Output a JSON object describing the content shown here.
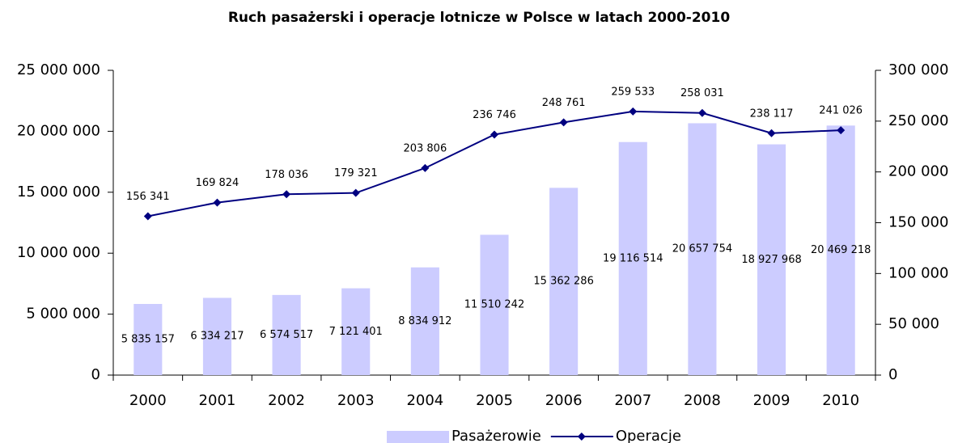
{
  "chart_data": {
    "type": "bar-line",
    "title": "Ruch pasażerski i operacje lotnicze w Polsce w latach 2000-2010",
    "categories": [
      "2000",
      "2001",
      "2002",
      "2003",
      "2004",
      "2005",
      "2006",
      "2007",
      "2008",
      "2009",
      "2010"
    ],
    "series": [
      {
        "name": "Pasażerowie",
        "type": "bar",
        "color": "#ccccff",
        "axis": "y",
        "values": [
          5835157,
          6334217,
          6574517,
          7121401,
          8834912,
          11510242,
          15362286,
          19116514,
          20657754,
          18927968,
          20469218
        ],
        "value_labels": [
          "5 835 157",
          "6 334 217",
          "6 574 517",
          "7 121 401",
          "8 834 912",
          "11 510 242",
          "15 362 286",
          "19 116 514",
          "20 657 754",
          "18 927 968",
          "20 469 218"
        ]
      },
      {
        "name": "Operacje",
        "type": "line",
        "color": "#000080",
        "axis": "y2",
        "values": [
          156341,
          169824,
          178036,
          179321,
          203806,
          236746,
          248761,
          259533,
          258031,
          238117,
          241026
        ],
        "value_labels": [
          "156 341",
          "169 824",
          "178 036",
          "179 321",
          "203 806",
          "236 746",
          "248 761",
          "259 533",
          "258 031",
          "238 117",
          "241 026"
        ]
      }
    ],
    "ylim": [
      0,
      25000000
    ],
    "yticks": [
      0,
      {
        "value": 5000000,
        "label": "5 000 000"
      },
      {
        "value": 10000000,
        "label": "10 000 000"
      },
      {
        "value": 15000000,
        "label": "15 000 000"
      },
      {
        "value": 20000000,
        "label": "20 000 000"
      },
      {
        "value": 25000000,
        "label": "25 000 000"
      }
    ],
    "y2lim": [
      0,
      300000
    ],
    "y2ticks": [
      0,
      {
        "value": 50000,
        "label": "50 000"
      },
      {
        "value": 100000,
        "label": "100 000"
      },
      {
        "value": 150000,
        "label": "150 000"
      },
      {
        "value": 200000,
        "label": "200 000"
      },
      {
        "value": 250000,
        "label": "250 000"
      },
      {
        "value": 300000,
        "label": "300 000"
      }
    ],
    "legend": "bottom"
  }
}
